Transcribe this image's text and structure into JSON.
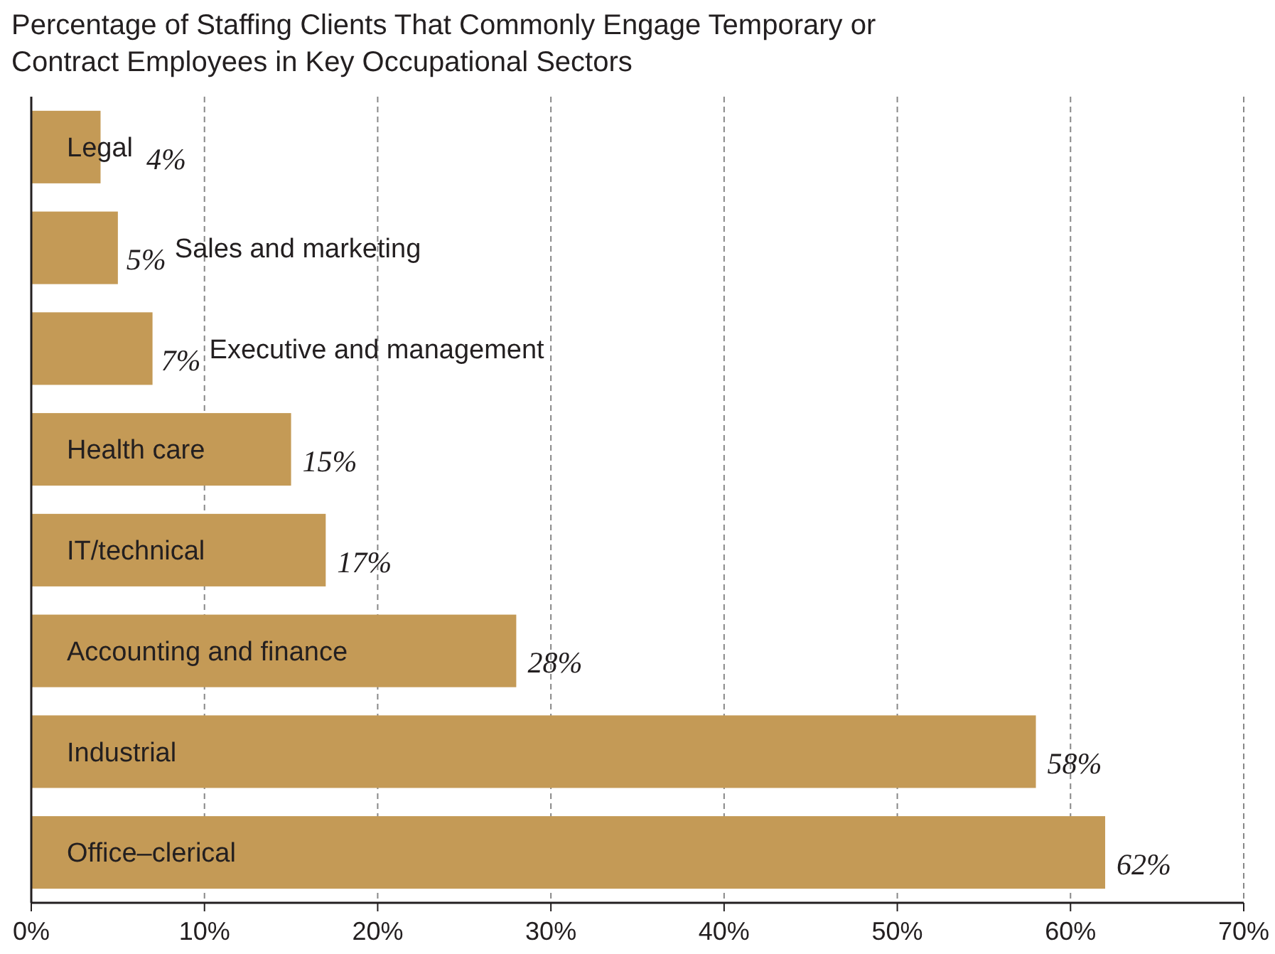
{
  "chart_data": {
    "type": "bar",
    "orientation": "horizontal",
    "title": "Percentage of Staffing Clients That Commonly Engage Temporary or Contract Employees in Key Occupational Sectors",
    "categories": [
      "Legal",
      "Sales and marketing",
      "Executive and management",
      "Health care",
      "IT/technical",
      "Accounting and finance",
      "Industrial",
      "Office–clerical"
    ],
    "values": [
      4,
      5,
      7,
      15,
      17,
      28,
      58,
      62
    ],
    "value_labels": [
      "4%",
      "5%",
      "7%",
      "15%",
      "17%",
      "28%",
      "58%",
      "62%"
    ],
    "color": "#c49a56",
    "xlim": [
      0,
      70
    ],
    "xticks": [
      {
        "value": 0,
        "label": "0%"
      },
      {
        "value": 10,
        "label": "10%"
      },
      {
        "value": 20,
        "label": "20%"
      },
      {
        "value": 30,
        "label": "30%"
      },
      {
        "value": 40,
        "label": "40%"
      },
      {
        "value": 50,
        "label": "50%"
      },
      {
        "value": 60,
        "label": "60%"
      },
      {
        "value": 70,
        "label": "70%"
      }
    ],
    "grid": "x"
  }
}
